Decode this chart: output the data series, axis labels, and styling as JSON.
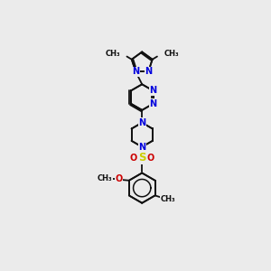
{
  "bg": "#ebebeb",
  "bc": "#111111",
  "Nc": "#0000dd",
  "Oc": "#cc0000",
  "Sc": "#cccc00",
  "lw": 1.3,
  "fs": 7.0,
  "fs_small": 6.0,
  "xlim": [
    0,
    6
  ],
  "ylim": [
    0,
    10
  ]
}
